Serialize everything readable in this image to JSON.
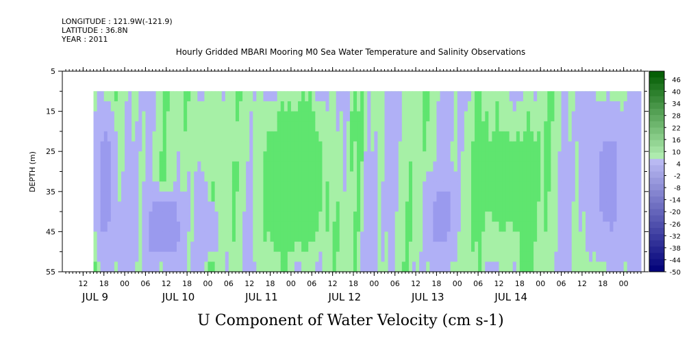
{
  "header": {
    "longitude": "LONGITUDE : 121.9W(-121.9)",
    "latitude": "LATITUDE : 36.8N",
    "year": "YEAR : 2011",
    "title": "Hourly Gridded MBARI Mooring M0 Sea Water Temperature and Salinity Observations"
  },
  "chart_data": {
    "type": "heatmap",
    "title": "Hourly Gridded MBARI Mooring M0 Sea Water Temperature and Salinity Observations",
    "variable": "U Component of Water Velocity (cm s-1)",
    "ylabel": "DEPTH (m)",
    "ylim": [
      5,
      55
    ],
    "y_inverted": true,
    "y_ticks": [
      "5",
      "15",
      "25",
      "35",
      "45",
      "55"
    ],
    "x_hour_range": [
      6,
      174
    ],
    "data_hour_range": [
      15,
      173
    ],
    "data_depth_range": [
      10,
      55
    ],
    "x_hour_labels": [
      "12",
      "18",
      "00",
      "06",
      "12",
      "18",
      "00",
      "06",
      "12",
      "18",
      "00",
      "06",
      "12",
      "18",
      "00",
      "06",
      "12",
      "18",
      "00",
      "06",
      "12",
      "18",
      "00",
      "06",
      "12",
      "18",
      "00"
    ],
    "day_labels": [
      "JUL  9",
      "JUL 10",
      "JUL 11",
      "JUL 12",
      "JUL 13",
      "JUL 14"
    ],
    "colorbar_levels": [
      -50,
      46
    ],
    "colorbar_labels": [
      "46",
      "40",
      "34",
      "28",
      "22",
      "16",
      "10",
      "4",
      "-2",
      "-8",
      "-14",
      "-20",
      "-26",
      "-32",
      "-38",
      "-44",
      "-50"
    ],
    "colors": {
      "strong_green": "#1fd03a",
      "mid_green": "#5fe56f",
      "light_green": "#a6f0a6",
      "light_blue": "#b0b0f6",
      "mid_blue": "#9a9aee",
      "deep_blue": "#7a7ae6"
    },
    "regions": [
      {
        "label": "negative flow",
        "hours": [
          15,
          22
        ],
        "depths": [
          10,
          55
        ],
        "value": -8
      },
      {
        "label": "negative flow",
        "hours": [
          22,
          28
        ],
        "depths": [
          35,
          55
        ],
        "value": -6
      },
      {
        "label": "negative flow",
        "hours": [
          28,
          42
        ],
        "depths": [
          33,
          55
        ],
        "value": -9
      },
      {
        "label": "negative flow",
        "hours": [
          46,
          51
        ],
        "depths": [
          37,
          52
        ],
        "value": -5
      },
      {
        "label": "positive flow",
        "hours": [
          60,
          86
        ],
        "depths": [
          10,
          55
        ],
        "value": 12
      },
      {
        "label": "positive flow",
        "hours": [
          42,
          60
        ],
        "depths": [
          10,
          32
        ],
        "value": 8
      },
      {
        "label": "negative flow",
        "hours": [
          110,
          121
        ],
        "depths": [
          28,
          55
        ],
        "value": -7
      },
      {
        "label": "positive flow",
        "hours": [
          121,
          150
        ],
        "depths": [
          10,
          55
        ],
        "value": 10
      },
      {
        "label": "negative flow",
        "hours": [
          157,
          170
        ],
        "depths": [
          10,
          55
        ],
        "value": -7
      }
    ]
  },
  "footer": {
    "variable_label": "U Component of Water Velocity (cm s-1)"
  }
}
